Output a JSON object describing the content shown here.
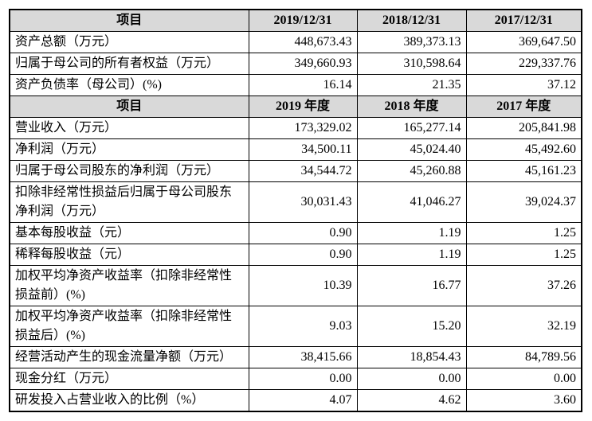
{
  "table": {
    "header": [
      "项目",
      "2019/12/31",
      "2018/12/31",
      "2017/12/31"
    ],
    "rows": [
      [
        "资产总额（万元）",
        "448,673.43",
        "389,373.13",
        "369,647.50"
      ],
      [
        "归属于母公司的所有者权益（万元）",
        "349,660.93",
        "310,598.64",
        "229,337.76"
      ],
      [
        "资产负债率（母公司）(%)",
        "16.14",
        "21.35",
        "37.12"
      ],
      [
        "项目",
        "2019 年度",
        "2018 年度",
        "2017 年度"
      ],
      [
        "营业收入（万元）",
        "173,329.02",
        "165,277.14",
        "205,841.98"
      ],
      [
        "净利润（万元）",
        "34,500.11",
        "45,024.40",
        "45,492.60"
      ],
      [
        "归属于母公司股东的净利润（万元）",
        "34,544.72",
        "45,260.88",
        "45,161.23"
      ],
      [
        "扣除非经常性损益后归属于母公司股东净利润（万元）",
        "30,031.43",
        "41,046.27",
        "39,024.37"
      ],
      [
        "基本每股收益（元）",
        "0.90",
        "1.19",
        "1.25"
      ],
      [
        "稀释每股收益（元）",
        "0.90",
        "1.19",
        "1.25"
      ],
      [
        "加权平均净资产收益率（扣除非经常性损益前）(%)",
        "10.39",
        "16.77",
        "37.26"
      ],
      [
        "加权平均净资产收益率（扣除非经常性损益后）(%)",
        "9.03",
        "15.20",
        "32.19"
      ],
      [
        "经营活动产生的现金流量净额（万元）",
        "38,415.66",
        "18,854.43",
        "84,789.56"
      ],
      [
        "现金分红（万元）",
        "0.00",
        "0.00",
        "0.00"
      ],
      [
        "研发投入占营业收入的比例（%）",
        "4.07",
        "4.62",
        "3.60"
      ]
    ]
  }
}
